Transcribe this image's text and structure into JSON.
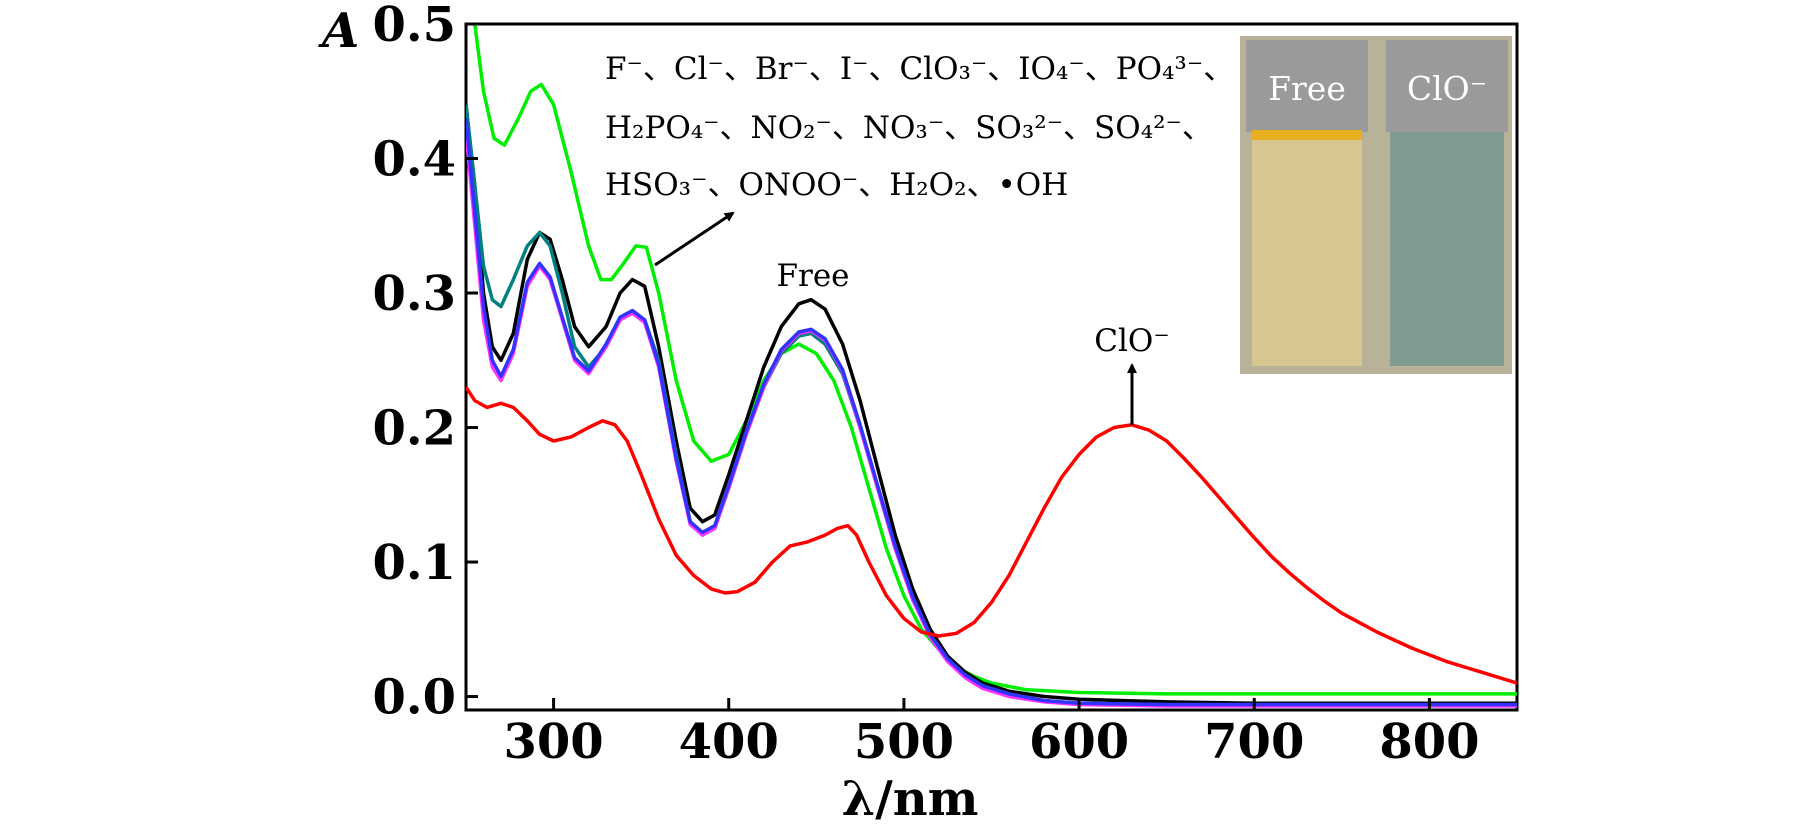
{
  "chart_data": {
    "type": "line",
    "title": "",
    "xlabel": "λ/nm",
    "ylabel": "A",
    "xlim": [
      250,
      850
    ],
    "ylim": [
      -0.01,
      0.5
    ],
    "x_ticks": [
      300,
      400,
      500,
      600,
      700,
      800
    ],
    "y_ticks": [
      0.0,
      0.1,
      0.2,
      0.3,
      0.4,
      0.5
    ],
    "x_tick_labels": [
      "300",
      "400",
      "500",
      "600",
      "700",
      "800"
    ],
    "y_tick_labels": [
      "0.0",
      "0.1",
      "0.2",
      "0.3",
      "0.4",
      "0.5"
    ],
    "grid": false,
    "legend": null,
    "series": [
      {
        "color": "#00ee00",
        "points": [
          [
            250,
            0.52
          ],
          [
            255,
            0.5
          ],
          [
            260,
            0.45
          ],
          [
            266,
            0.415
          ],
          [
            272,
            0.41
          ],
          [
            280,
            0.43
          ],
          [
            287,
            0.45
          ],
          [
            293,
            0.455
          ],
          [
            300,
            0.44
          ],
          [
            310,
            0.39
          ],
          [
            320,
            0.335
          ],
          [
            327,
            0.31
          ],
          [
            333,
            0.31
          ],
          [
            340,
            0.322
          ],
          [
            347,
            0.335
          ],
          [
            353,
            0.334
          ],
          [
            360,
            0.3
          ],
          [
            370,
            0.235
          ],
          [
            380,
            0.19
          ],
          [
            390,
            0.175
          ],
          [
            400,
            0.18
          ],
          [
            410,
            0.205
          ],
          [
            420,
            0.235
          ],
          [
            430,
            0.255
          ],
          [
            440,
            0.262
          ],
          [
            450,
            0.255
          ],
          [
            460,
            0.235
          ],
          [
            470,
            0.2
          ],
          [
            480,
            0.155
          ],
          [
            490,
            0.11
          ],
          [
            500,
            0.075
          ],
          [
            510,
            0.05
          ],
          [
            520,
            0.035
          ],
          [
            530,
            0.022
          ],
          [
            540,
            0.015
          ],
          [
            550,
            0.01
          ],
          [
            570,
            0.005
          ],
          [
            600,
            0.003
          ],
          [
            650,
            0.002
          ],
          [
            700,
            0.002
          ],
          [
            750,
            0.002
          ],
          [
            800,
            0.002
          ],
          [
            850,
            0.002
          ]
        ]
      },
      {
        "color": "#000000",
        "points": [
          [
            250,
            0.44
          ],
          [
            255,
            0.38
          ],
          [
            260,
            0.3
          ],
          [
            265,
            0.26
          ],
          [
            270,
            0.25
          ],
          [
            277,
            0.27
          ],
          [
            285,
            0.325
          ],
          [
            292,
            0.345
          ],
          [
            298,
            0.34
          ],
          [
            305,
            0.31
          ],
          [
            312,
            0.275
          ],
          [
            320,
            0.26
          ],
          [
            330,
            0.275
          ],
          [
            338,
            0.3
          ],
          [
            345,
            0.31
          ],
          [
            352,
            0.305
          ],
          [
            360,
            0.26
          ],
          [
            370,
            0.19
          ],
          [
            378,
            0.14
          ],
          [
            385,
            0.13
          ],
          [
            392,
            0.135
          ],
          [
            400,
            0.165
          ],
          [
            410,
            0.205
          ],
          [
            420,
            0.245
          ],
          [
            430,
            0.275
          ],
          [
            440,
            0.292
          ],
          [
            447,
            0.295
          ],
          [
            455,
            0.288
          ],
          [
            465,
            0.262
          ],
          [
            475,
            0.22
          ],
          [
            485,
            0.17
          ],
          [
            495,
            0.12
          ],
          [
            505,
            0.08
          ],
          [
            515,
            0.05
          ],
          [
            525,
            0.03
          ],
          [
            535,
            0.018
          ],
          [
            545,
            0.01
          ],
          [
            560,
            0.004
          ],
          [
            580,
            0.0
          ],
          [
            600,
            -0.002
          ],
          [
            650,
            -0.004
          ],
          [
            700,
            -0.005
          ],
          [
            750,
            -0.005
          ],
          [
            800,
            -0.005
          ],
          [
            850,
            -0.005
          ]
        ]
      },
      {
        "color": "#008080",
        "points": [
          [
            250,
            0.44
          ],
          [
            255,
            0.38
          ],
          [
            260,
            0.32
          ],
          [
            265,
            0.295
          ],
          [
            270,
            0.29
          ],
          [
            277,
            0.31
          ],
          [
            285,
            0.335
          ],
          [
            292,
            0.345
          ],
          [
            298,
            0.335
          ],
          [
            305,
            0.3
          ],
          [
            312,
            0.26
          ],
          [
            320,
            0.245
          ],
          [
            330,
            0.26
          ],
          [
            338,
            0.28
          ],
          [
            345,
            0.285
          ],
          [
            352,
            0.28
          ],
          [
            360,
            0.25
          ],
          [
            370,
            0.18
          ],
          [
            378,
            0.13
          ],
          [
            385,
            0.12
          ],
          [
            392,
            0.125
          ],
          [
            400,
            0.155
          ],
          [
            410,
            0.195
          ],
          [
            420,
            0.23
          ],
          [
            430,
            0.255
          ],
          [
            440,
            0.268
          ],
          [
            447,
            0.27
          ],
          [
            455,
            0.262
          ],
          [
            465,
            0.24
          ],
          [
            475,
            0.2
          ],
          [
            485,
            0.155
          ],
          [
            495,
            0.11
          ],
          [
            505,
            0.072
          ],
          [
            515,
            0.045
          ],
          [
            525,
            0.027
          ],
          [
            535,
            0.016
          ],
          [
            545,
            0.008
          ],
          [
            560,
            0.002
          ],
          [
            580,
            -0.003
          ],
          [
            600,
            -0.005
          ],
          [
            650,
            -0.006
          ],
          [
            700,
            -0.006
          ],
          [
            750,
            -0.006
          ],
          [
            800,
            -0.006
          ],
          [
            850,
            -0.006
          ]
        ]
      },
      {
        "color": "#ff33ff",
        "points": [
          [
            250,
            0.42
          ],
          [
            255,
            0.35
          ],
          [
            260,
            0.28
          ],
          [
            265,
            0.245
          ],
          [
            270,
            0.235
          ],
          [
            277,
            0.255
          ],
          [
            285,
            0.305
          ],
          [
            292,
            0.32
          ],
          [
            298,
            0.31
          ],
          [
            305,
            0.28
          ],
          [
            312,
            0.25
          ],
          [
            320,
            0.24
          ],
          [
            330,
            0.26
          ],
          [
            338,
            0.28
          ],
          [
            345,
            0.285
          ],
          [
            352,
            0.278
          ],
          [
            360,
            0.245
          ],
          [
            370,
            0.175
          ],
          [
            378,
            0.128
          ],
          [
            385,
            0.12
          ],
          [
            392,
            0.125
          ],
          [
            400,
            0.155
          ],
          [
            410,
            0.195
          ],
          [
            420,
            0.23
          ],
          [
            430,
            0.257
          ],
          [
            440,
            0.27
          ],
          [
            447,
            0.272
          ],
          [
            455,
            0.265
          ],
          [
            465,
            0.242
          ],
          [
            475,
            0.2
          ],
          [
            485,
            0.155
          ],
          [
            495,
            0.11
          ],
          [
            505,
            0.072
          ],
          [
            515,
            0.044
          ],
          [
            525,
            0.026
          ],
          [
            535,
            0.014
          ],
          [
            545,
            0.006
          ],
          [
            560,
            0.0
          ],
          [
            580,
            -0.004
          ],
          [
            600,
            -0.006
          ],
          [
            650,
            -0.007
          ],
          [
            700,
            -0.007
          ],
          [
            750,
            -0.007
          ],
          [
            800,
            -0.007
          ],
          [
            850,
            -0.007
          ]
        ]
      },
      {
        "color": "#3333ff",
        "points": [
          [
            250,
            0.43
          ],
          [
            255,
            0.36
          ],
          [
            260,
            0.29
          ],
          [
            265,
            0.25
          ],
          [
            270,
            0.238
          ],
          [
            277,
            0.258
          ],
          [
            285,
            0.308
          ],
          [
            292,
            0.322
          ],
          [
            298,
            0.312
          ],
          [
            305,
            0.282
          ],
          [
            312,
            0.252
          ],
          [
            320,
            0.242
          ],
          [
            330,
            0.262
          ],
          [
            338,
            0.282
          ],
          [
            345,
            0.287
          ],
          [
            352,
            0.28
          ],
          [
            360,
            0.247
          ],
          [
            370,
            0.177
          ],
          [
            378,
            0.13
          ],
          [
            385,
            0.122
          ],
          [
            392,
            0.127
          ],
          [
            400,
            0.157
          ],
          [
            410,
            0.197
          ],
          [
            420,
            0.232
          ],
          [
            430,
            0.258
          ],
          [
            440,
            0.271
          ],
          [
            447,
            0.273
          ],
          [
            455,
            0.266
          ],
          [
            465,
            0.243
          ],
          [
            475,
            0.202
          ],
          [
            485,
            0.157
          ],
          [
            495,
            0.112
          ],
          [
            505,
            0.074
          ],
          [
            515,
            0.046
          ],
          [
            525,
            0.028
          ],
          [
            535,
            0.016
          ],
          [
            545,
            0.008
          ],
          [
            560,
            0.002
          ],
          [
            580,
            -0.003
          ],
          [
            600,
            -0.005
          ],
          [
            650,
            -0.006
          ],
          [
            700,
            -0.006
          ],
          [
            750,
            -0.006
          ],
          [
            800,
            -0.006
          ],
          [
            850,
            -0.006
          ]
        ]
      },
      {
        "color": "#ff0000",
        "points": [
          [
            250,
            0.23
          ],
          [
            255,
            0.22
          ],
          [
            262,
            0.215
          ],
          [
            270,
            0.218
          ],
          [
            277,
            0.215
          ],
          [
            285,
            0.205
          ],
          [
            292,
            0.195
          ],
          [
            300,
            0.19
          ],
          [
            310,
            0.193
          ],
          [
            320,
            0.2
          ],
          [
            328,
            0.205
          ],
          [
            335,
            0.202
          ],
          [
            342,
            0.19
          ],
          [
            350,
            0.165
          ],
          [
            360,
            0.132
          ],
          [
            370,
            0.105
          ],
          [
            380,
            0.09
          ],
          [
            390,
            0.08
          ],
          [
            398,
            0.077
          ],
          [
            405,
            0.078
          ],
          [
            415,
            0.085
          ],
          [
            425,
            0.1
          ],
          [
            435,
            0.112
          ],
          [
            445,
            0.115
          ],
          [
            455,
            0.12
          ],
          [
            462,
            0.125
          ],
          [
            468,
            0.127
          ],
          [
            473,
            0.12
          ],
          [
            480,
            0.1
          ],
          [
            490,
            0.075
          ],
          [
            500,
            0.058
          ],
          [
            510,
            0.048
          ],
          [
            520,
            0.045
          ],
          [
            530,
            0.047
          ],
          [
            540,
            0.055
          ],
          [
            550,
            0.07
          ],
          [
            560,
            0.09
          ],
          [
            570,
            0.115
          ],
          [
            580,
            0.14
          ],
          [
            590,
            0.163
          ],
          [
            600,
            0.18
          ],
          [
            610,
            0.193
          ],
          [
            620,
            0.2
          ],
          [
            630,
            0.202
          ],
          [
            640,
            0.198
          ],
          [
            650,
            0.19
          ],
          [
            660,
            0.177
          ],
          [
            670,
            0.163
          ],
          [
            680,
            0.148
          ],
          [
            690,
            0.133
          ],
          [
            700,
            0.118
          ],
          [
            710,
            0.104
          ],
          [
            720,
            0.092
          ],
          [
            730,
            0.081
          ],
          [
            740,
            0.071
          ],
          [
            750,
            0.062
          ],
          [
            760,
            0.055
          ],
          [
            770,
            0.048
          ],
          [
            780,
            0.042
          ],
          [
            790,
            0.036
          ],
          [
            800,
            0.031
          ],
          [
            810,
            0.026
          ],
          [
            820,
            0.022
          ],
          [
            830,
            0.018
          ],
          [
            840,
            0.014
          ],
          [
            850,
            0.01
          ]
        ]
      }
    ],
    "annotations": [
      {
        "id": "ion-list-1",
        "text": "F⁻、Cl⁻、Br⁻、I⁻、ClO₃⁻、IO₄⁻、PO₄³⁻、"
      },
      {
        "id": "ion-list-2",
        "text": "H₂PO₄⁻、NO₂⁻、NO₃⁻、SO₃²⁻、SO₄²⁻、"
      },
      {
        "id": "ion-list-3",
        "text": "HSO₃⁻、ONOO⁻、H₂O₂、•OH"
      },
      {
        "id": "free",
        "text": "Free"
      },
      {
        "id": "clo",
        "text": "ClO⁻"
      }
    ],
    "inset": {
      "labels": [
        "Free",
        "ClO⁻"
      ],
      "colors": {
        "free_solution": "#d8c690",
        "clo_solution": "#7f9a90",
        "cap": "#9a9a9a",
        "background": "#b8b398"
      }
    }
  }
}
